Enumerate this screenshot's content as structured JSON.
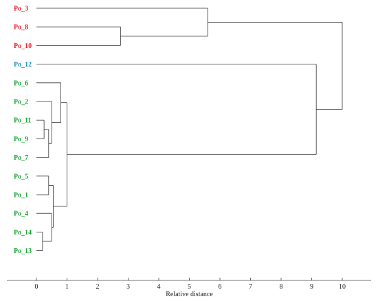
{
  "chart_data": {
    "type": "dendrogram",
    "xlabel": "Relative distance",
    "xlim": [
      0,
      10
    ],
    "x_ticks": [
      "0",
      "1",
      "2",
      "3",
      "4",
      "5",
      "6",
      "7",
      "8",
      "9",
      "10"
    ],
    "colors": {
      "red": "#e8202a",
      "blue": "#1a8fc8",
      "green": "#1aa534",
      "line": "#333333"
    },
    "leaves": [
      {
        "id": "Po_3",
        "label": "Po_3",
        "color": "red"
      },
      {
        "id": "Po_8",
        "label": "Po_8",
        "color": "red"
      },
      {
        "id": "Po_10",
        "label": "Po_10",
        "color": "red"
      },
      {
        "id": "Po_12",
        "label": "Po_12",
        "color": "blue"
      },
      {
        "id": "Po_6",
        "label": "Po_6",
        "color": "green"
      },
      {
        "id": "Po_2",
        "label": "Po_2",
        "color": "green"
      },
      {
        "id": "Po_11",
        "label": "Po_11",
        "color": "green"
      },
      {
        "id": "Po_9",
        "label": "Po_9",
        "color": "green"
      },
      {
        "id": "Po_7",
        "label": "Po_7",
        "color": "green"
      },
      {
        "id": "Po_5",
        "label": "Po_5",
        "color": "green"
      },
      {
        "id": "Po_1",
        "label": "Po_1",
        "color": "green"
      },
      {
        "id": "Po_4",
        "label": "Po_4",
        "color": "green"
      },
      {
        "id": "Po_14",
        "label": "Po_14",
        "color": "green"
      },
      {
        "id": "Po_13",
        "label": "Po_13",
        "color": "green"
      }
    ],
    "merges": [
      {
        "id": "A",
        "children": [
          "Po_11",
          "Po_9"
        ],
        "height": 0.25
      },
      {
        "id": "B",
        "children": [
          "Po_14",
          "Po_13"
        ],
        "height": 0.2
      },
      {
        "id": "C",
        "children": [
          "Po_5",
          "Po_1"
        ],
        "height": 0.4
      },
      {
        "id": "D",
        "children": [
          "Po_7",
          "A"
        ],
        "height": 0.4
      },
      {
        "id": "E",
        "children": [
          "Po_2",
          "D"
        ],
        "height": 0.5
      },
      {
        "id": "F",
        "children": [
          "Po_4",
          "B"
        ],
        "height": 0.5
      },
      {
        "id": "G",
        "children": [
          "C",
          "F"
        ],
        "height": 0.55
      },
      {
        "id": "H",
        "children": [
          "Po_6",
          "E"
        ],
        "height": 0.8
      },
      {
        "id": "I",
        "children": [
          "H",
          "G"
        ],
        "height": 1.0
      },
      {
        "id": "J",
        "children": [
          "Po_8",
          "Po_10"
        ],
        "height": 2.75
      },
      {
        "id": "K",
        "children": [
          "Po_3",
          "J"
        ],
        "height": 5.6
      },
      {
        "id": "L",
        "children": [
          "Po_12",
          "I"
        ],
        "height": 9.15
      },
      {
        "id": "M",
        "children": [
          "K",
          "L"
        ],
        "height": 10.0
      }
    ]
  }
}
